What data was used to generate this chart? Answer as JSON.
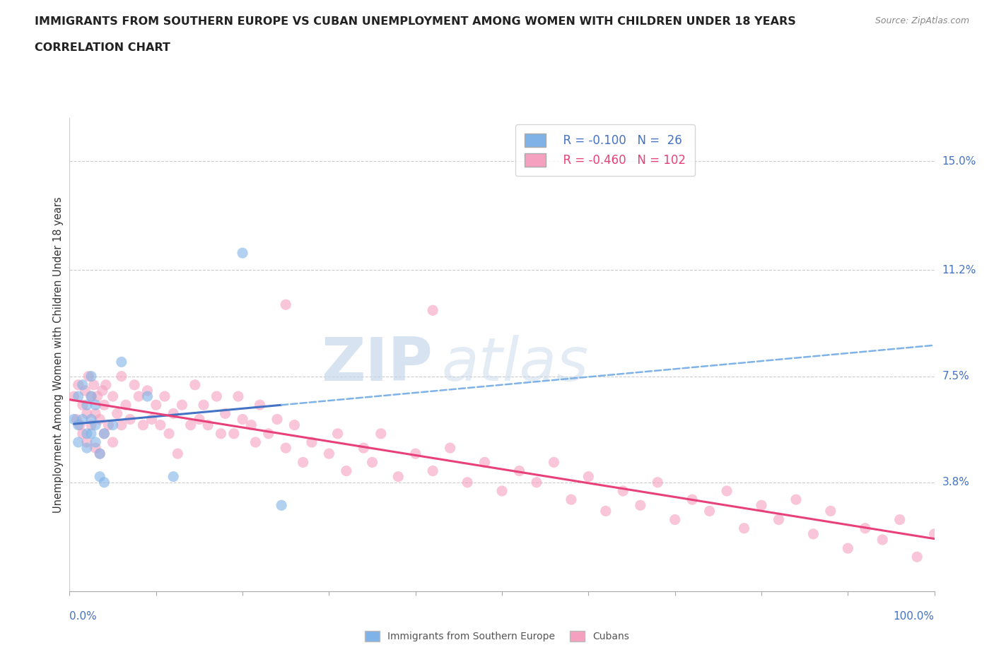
{
  "title_line1": "IMMIGRANTS FROM SOUTHERN EUROPE VS CUBAN UNEMPLOYMENT AMONG WOMEN WITH CHILDREN UNDER 18 YEARS",
  "title_line2": "CORRELATION CHART",
  "source_text": "Source: ZipAtlas.com",
  "ylabel": "Unemployment Among Women with Children Under 18 years",
  "xlim": [
    0.0,
    1.0
  ],
  "ylim": [
    0.0,
    0.165
  ],
  "yticks": [
    0.0,
    0.038,
    0.075,
    0.112,
    0.15
  ],
  "ytick_labels": [
    "",
    "3.8%",
    "7.5%",
    "11.2%",
    "15.0%"
  ],
  "xtick_labels": [
    "0.0%",
    "100.0%"
  ],
  "legend_R1": "R = -0.100",
  "legend_N1": "N =  26",
  "legend_R2": "R = -0.460",
  "legend_N2": "N = 102",
  "color_blue": "#7FB3E8",
  "color_pink": "#F4A0BE",
  "color_blue_line": "#4472C4",
  "color_pink_line": "#E8417A",
  "color_dashed": "#7FB3E8",
  "watermark_color": "#D0E4F4",
  "background_color": "#FFFFFF",
  "grid_color": "#CCCCCC",
  "blue_x": [
    0.005,
    0.01,
    0.01,
    0.01,
    0.015,
    0.015,
    0.02,
    0.02,
    0.02,
    0.025,
    0.025,
    0.025,
    0.025,
    0.03,
    0.03,
    0.03,
    0.035,
    0.035,
    0.04,
    0.04,
    0.05,
    0.06,
    0.09,
    0.12,
    0.2,
    0.245
  ],
  "blue_y": [
    0.06,
    0.068,
    0.058,
    0.052,
    0.072,
    0.06,
    0.065,
    0.055,
    0.05,
    0.075,
    0.068,
    0.06,
    0.055,
    0.065,
    0.058,
    0.052,
    0.048,
    0.04,
    0.055,
    0.038,
    0.058,
    0.08,
    0.068,
    0.04,
    0.118,
    0.03
  ],
  "pink_x": [
    0.005,
    0.008,
    0.01,
    0.012,
    0.015,
    0.015,
    0.018,
    0.02,
    0.02,
    0.022,
    0.025,
    0.025,
    0.028,
    0.03,
    0.03,
    0.032,
    0.035,
    0.035,
    0.038,
    0.04,
    0.04,
    0.042,
    0.045,
    0.05,
    0.05,
    0.055,
    0.06,
    0.06,
    0.065,
    0.07,
    0.075,
    0.08,
    0.085,
    0.09,
    0.095,
    0.1,
    0.105,
    0.11,
    0.115,
    0.12,
    0.125,
    0.13,
    0.14,
    0.145,
    0.15,
    0.155,
    0.16,
    0.17,
    0.175,
    0.18,
    0.19,
    0.195,
    0.2,
    0.21,
    0.215,
    0.22,
    0.23,
    0.24,
    0.25,
    0.26,
    0.27,
    0.28,
    0.3,
    0.31,
    0.32,
    0.34,
    0.35,
    0.36,
    0.38,
    0.4,
    0.42,
    0.44,
    0.46,
    0.48,
    0.5,
    0.52,
    0.54,
    0.56,
    0.58,
    0.6,
    0.62,
    0.64,
    0.66,
    0.68,
    0.7,
    0.72,
    0.74,
    0.76,
    0.78,
    0.8,
    0.82,
    0.84,
    0.86,
    0.88,
    0.9,
    0.92,
    0.94,
    0.96,
    0.98,
    1.0,
    0.25,
    0.42
  ],
  "pink_y": [
    0.068,
    0.06,
    0.072,
    0.058,
    0.065,
    0.055,
    0.07,
    0.062,
    0.052,
    0.075,
    0.068,
    0.058,
    0.072,
    0.062,
    0.05,
    0.068,
    0.06,
    0.048,
    0.07,
    0.065,
    0.055,
    0.072,
    0.058,
    0.068,
    0.052,
    0.062,
    0.075,
    0.058,
    0.065,
    0.06,
    0.072,
    0.068,
    0.058,
    0.07,
    0.06,
    0.065,
    0.058,
    0.068,
    0.055,
    0.062,
    0.048,
    0.065,
    0.058,
    0.072,
    0.06,
    0.065,
    0.058,
    0.068,
    0.055,
    0.062,
    0.055,
    0.068,
    0.06,
    0.058,
    0.052,
    0.065,
    0.055,
    0.06,
    0.05,
    0.058,
    0.045,
    0.052,
    0.048,
    0.055,
    0.042,
    0.05,
    0.045,
    0.055,
    0.04,
    0.048,
    0.042,
    0.05,
    0.038,
    0.045,
    0.035,
    0.042,
    0.038,
    0.045,
    0.032,
    0.04,
    0.028,
    0.035,
    0.03,
    0.038,
    0.025,
    0.032,
    0.028,
    0.035,
    0.022,
    0.03,
    0.025,
    0.032,
    0.02,
    0.028,
    0.015,
    0.022,
    0.018,
    0.025,
    0.012,
    0.02,
    0.1,
    0.098
  ]
}
